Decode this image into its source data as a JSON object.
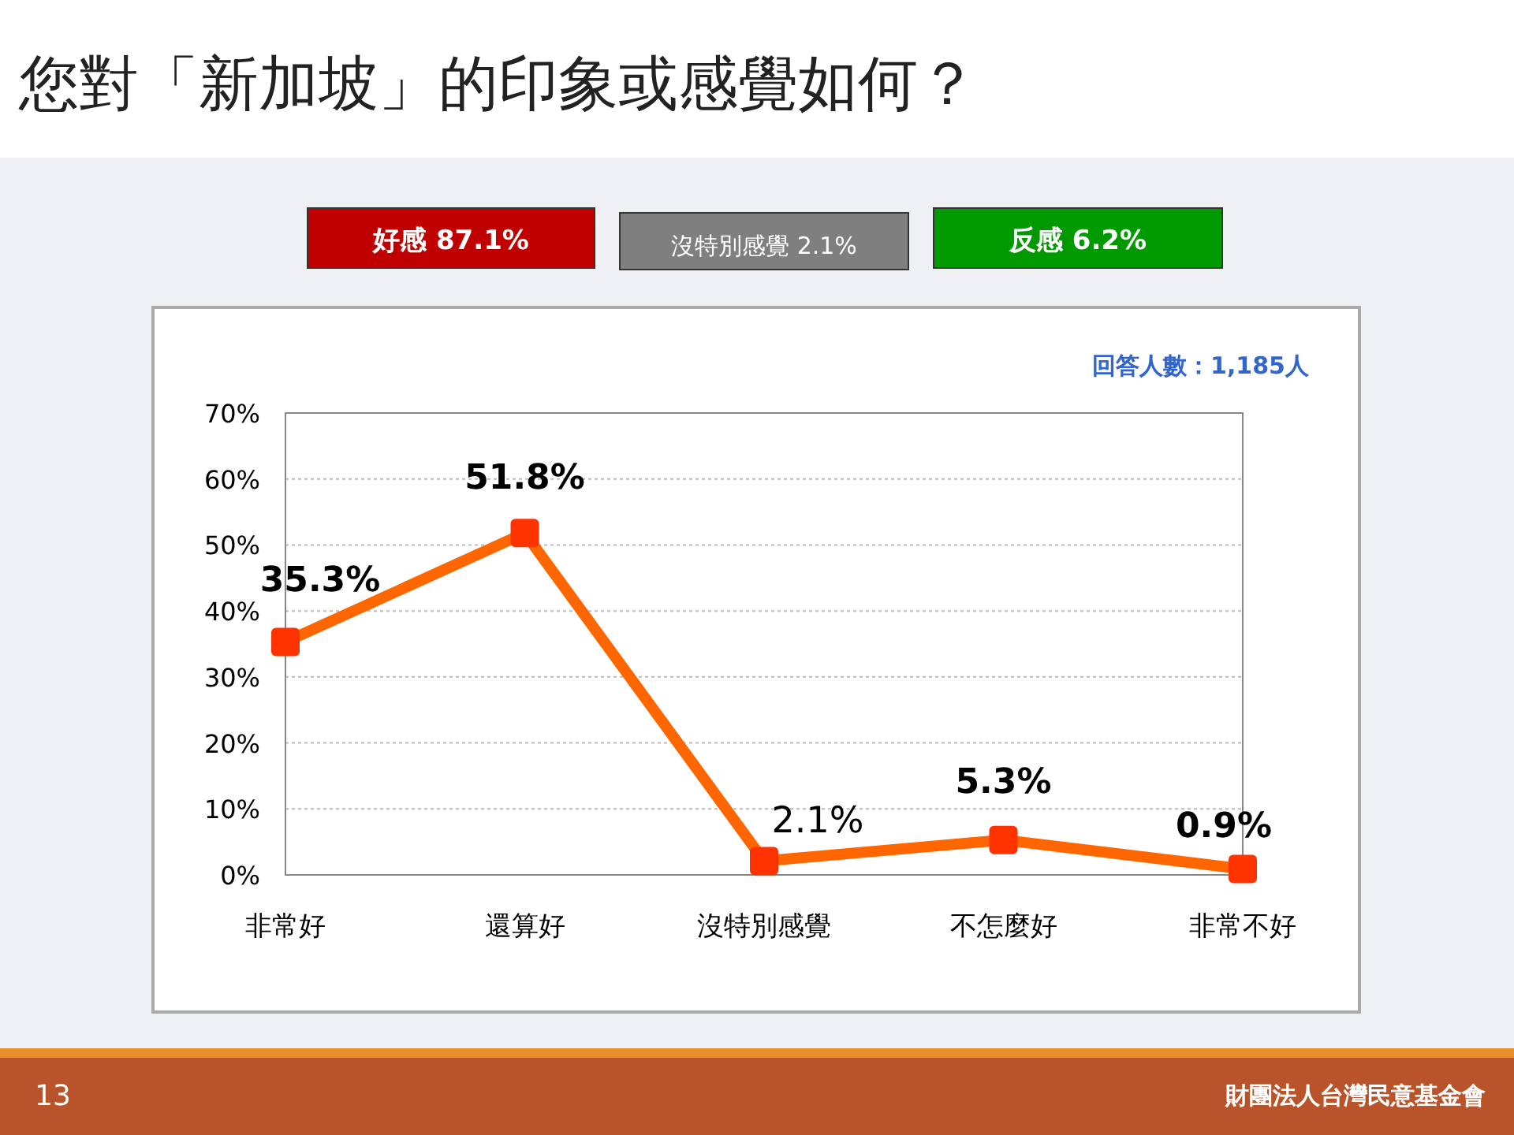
{
  "chart_data": {
    "type": "line",
    "title": "您對「新加坡」的印象或感覺如何？",
    "categories": [
      "非常好",
      "還算好",
      "沒特別感覺",
      "不怎麼好",
      "非常不好"
    ],
    "series": [
      {
        "color": "#ff6600",
        "values": [
          35.3,
          51.8,
          2.1,
          5.3,
          0.9
        ]
      }
    ],
    "ylim": [
      0,
      70
    ],
    "yticks": [
      {
        "value": 0,
        "label": "0%"
      },
      {
        "value": 10,
        "label": "10%"
      },
      {
        "value": 20,
        "label": "20%"
      },
      {
        "value": 30,
        "label": "30%"
      },
      {
        "value": 40,
        "label": "40%"
      },
      {
        "value": 50,
        "label": "50%"
      },
      {
        "value": 60,
        "label": "60%"
      },
      {
        "value": 70,
        "label": "70%"
      }
    ],
    "value_labels": [
      "35.3%",
      "51.8%",
      "2.1%",
      "5.3%",
      "0.9%"
    ],
    "grid": "y",
    "marker": "square",
    "line_style": "solid",
    "annotations": [
      "好感 87.1%",
      "沒特別感覺 2.1%",
      "反感 6.2%",
      "回答人數：1,185人",
      "13",
      "財團法人台灣民意基金會"
    ]
  }
}
